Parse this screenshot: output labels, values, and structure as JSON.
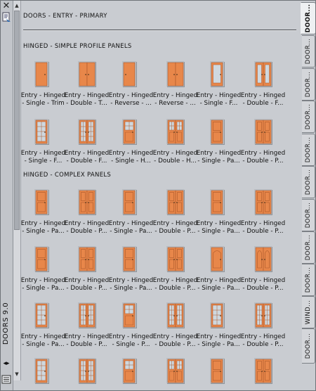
{
  "palette": {
    "title": "DOORS 9.0",
    "header_title": "DOORS - ENTRY - PRIMARY"
  },
  "colors": {
    "door": "#e8874a",
    "door_dark": "#a9572a",
    "frame": "#8f949a",
    "glass": "#cfd8df"
  },
  "sections": [
    {
      "title": "HINGED - SIMPLE PROFILE PANELS",
      "items": [
        {
          "l1": "Entry - Hinged",
          "l2": "- Single - Trim",
          "type": "single-plain"
        },
        {
          "l1": "Entry - Hinged",
          "l2": "- Double - T...",
          "type": "double-plain"
        },
        {
          "l1": "Entry - Hinged",
          "l2": "- Reverse - ...",
          "type": "single-plain-rev"
        },
        {
          "l1": "Entry - Hinged",
          "l2": "- Reverse - ...",
          "type": "double-plain"
        },
        {
          "l1": "Entry - Hinged",
          "l2": "- Single - F...",
          "type": "single-full-glass"
        },
        {
          "l1": "Entry - Hinged",
          "l2": "- Double - F...",
          "type": "double-full-glass"
        },
        {
          "l1": "Entry - Hinged",
          "l2": "- Single - F...",
          "type": "single-grid"
        },
        {
          "l1": "Entry - Hinged",
          "l2": "- Double - F...",
          "type": "double-grid"
        },
        {
          "l1": "Entry - Hinged",
          "l2": "- Single - H...",
          "type": "single-half-grid"
        },
        {
          "l1": "Entry - Hinged",
          "l2": "- Double - H...",
          "type": "double-half-grid"
        },
        {
          "l1": "Entry - Hinged",
          "l2": "- Single - Pa...",
          "type": "single-panels"
        },
        {
          "l1": "Entry - Hinged",
          "l2": "- Double - P...",
          "type": "double-panels"
        }
      ]
    },
    {
      "title": "HINGED - COMPLEX PANELS",
      "items": [
        {
          "l1": "Entry - Hinged",
          "l2": "- Single - Pa...",
          "type": "single-panels"
        },
        {
          "l1": "Entry - Hinged",
          "l2": "- Double - P...",
          "type": "double-panels"
        },
        {
          "l1": "Entry - Hinged",
          "l2": "- Single - Pa...",
          "type": "single-panels"
        },
        {
          "l1": "Entry - Hinged",
          "l2": "- Double - P...",
          "type": "double-panels"
        },
        {
          "l1": "Entry - Hinged",
          "l2": "- Single - Pa...",
          "type": "single-panels"
        },
        {
          "l1": "Entry - Hinged",
          "l2": "- Double - P...",
          "type": "double-panels"
        },
        {
          "l1": "Entry - Hinged",
          "l2": "- Single - Pa...",
          "type": "single-panels"
        },
        {
          "l1": "Entry - Hinged",
          "l2": "- Double - P...",
          "type": "double-panels"
        },
        {
          "l1": "Entry - Hinged",
          "l2": "- Single - Pa...",
          "type": "single-panels"
        },
        {
          "l1": "Entry - Hinged",
          "l2": "- Double - P...",
          "type": "double-panels"
        },
        {
          "l1": "Entry - Hinged",
          "l2": "- Single - Pa...",
          "type": "single-arch"
        },
        {
          "l1": "Entry - Hinged",
          "l2": "- Double - P...",
          "type": "double-arch"
        },
        {
          "l1": "Entry - Hinged",
          "l2": "- Single - Pa...",
          "type": "single-grid"
        },
        {
          "l1": "Entry - Hinged",
          "l2": "- Double - P...",
          "type": "double-grid"
        },
        {
          "l1": "Entry - Hinged",
          "l2": "- Single - P...",
          "type": "single-half-grid"
        },
        {
          "l1": "Entry - Hinged",
          "l2": "- Double - P...",
          "type": "double-grid"
        },
        {
          "l1": "Entry - Hinged",
          "l2": "- Single - Pa...",
          "type": "single-grid"
        },
        {
          "l1": "Entry - Hinged",
          "l2": "- Double - P...",
          "type": "double-grid"
        },
        {
          "l1": "",
          "l2": "",
          "type": "single-grid"
        },
        {
          "l1": "",
          "l2": "",
          "type": "double-grid"
        },
        {
          "l1": "",
          "l2": "",
          "type": "single-half-grid"
        },
        {
          "l1": "",
          "l2": "",
          "type": "double-half-grid"
        },
        {
          "l1": "",
          "l2": "",
          "type": "single-panels"
        },
        {
          "l1": "",
          "l2": "",
          "type": "double-panels"
        }
      ]
    }
  ],
  "tabs": [
    {
      "label": "DOOR...",
      "active": true
    },
    {
      "label": "DOOR...",
      "active": false
    },
    {
      "label": "DOOR...",
      "active": false
    },
    {
      "label": "DOOR...",
      "active": false
    },
    {
      "label": "DOOR...",
      "active": false
    },
    {
      "label": "DOOR...",
      "active": false
    },
    {
      "label": "DOOR...",
      "active": false
    },
    {
      "label": "DOOR...",
      "active": false
    },
    {
      "label": "DOOR...",
      "active": false
    },
    {
      "label": "WIND...",
      "active": false
    },
    {
      "label": "DOOR...",
      "active": false
    }
  ],
  "icons": {
    "close": "close-icon",
    "properties": "properties-icon",
    "autohide": "autohide-icon",
    "menu": "palette-menu-icon"
  }
}
